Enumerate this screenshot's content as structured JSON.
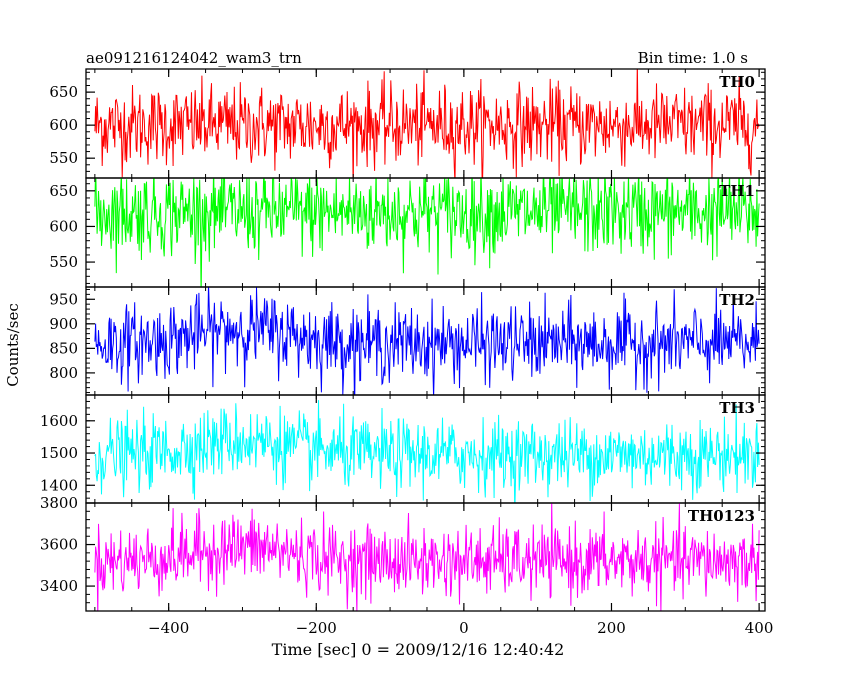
{
  "header": {
    "title": "ae091216124042_wam3_trn",
    "bin_time": "Bin time: 1.0 s"
  },
  "chart_data": {
    "type": "line",
    "shared_x": {
      "label": "Time [sec] 0 = 2009/12/16 12:40:42",
      "range": [
        -512,
        408
      ],
      "ticks": [
        -400,
        -200,
        0,
        200,
        400
      ],
      "tick_labels": [
        "−400",
        "−200",
        "0",
        "200",
        "400"
      ]
    },
    "y_label": "Counts/sec",
    "data_x_range": [
      -500,
      400
    ],
    "panels": [
      {
        "name": "TH0",
        "color": "#ff0000",
        "ylim": [
          520,
          685
        ],
        "ticks": [
          550,
          600,
          650
        ],
        "baseline": 600,
        "noise": 30
      },
      {
        "name": "TH1",
        "color": "#00ff00",
        "ylim": [
          515,
          668
        ],
        "ticks": [
          550,
          600,
          650
        ],
        "baseline": 620,
        "noise": 30
      },
      {
        "name": "TH2",
        "color": "#0000ff",
        "ylim": [
          755,
          975
        ],
        "ticks": [
          800,
          850,
          900,
          950
        ],
        "baseline": 860,
        "noise": 38
      },
      {
        "name": "TH3",
        "color": "#00ffff",
        "ylim": [
          1345,
          1680
        ],
        "ticks": [
          1400,
          1500,
          1600
        ],
        "baseline": 1495,
        "noise": 55
      },
      {
        "name": "TH0123",
        "color": "#ff00ff",
        "ylim": [
          3280,
          3800
        ],
        "ticks": [
          3400,
          3600,
          3800
        ],
        "baseline": 3520,
        "noise": 85
      }
    ]
  }
}
